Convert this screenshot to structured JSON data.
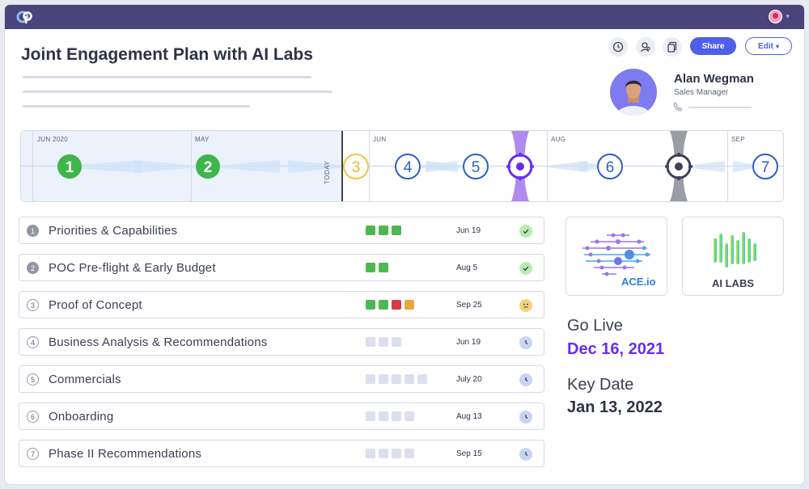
{
  "header": {
    "app_logo_icon": "cp-logo-icon",
    "user_avatar_icon": "user-avatar-icon",
    "brand_color": "#49457b"
  },
  "page": {
    "title": "Joint Engagement Plan with AI Labs"
  },
  "toolbar": {
    "history_icon": "clock-history-icon",
    "people_icon": "user-search-icon",
    "copy_icon": "copy-icon",
    "share_label": "Share",
    "edit_label": "Edit",
    "accent": "#4f5fe8"
  },
  "contact": {
    "name": "Alan Wegman",
    "role": "Sales Manager",
    "phone_icon": "phone-icon"
  },
  "timeline": {
    "months": [
      "JUN 2020",
      "MAY",
      "JUN",
      "AUG",
      "SEP"
    ],
    "today_label": "TODAY",
    "milestones": [
      "1",
      "2",
      "3",
      "4",
      "5",
      "6",
      "7"
    ],
    "targets": [
      {
        "name": "go-live-target",
        "color": "#7b3cf0"
      },
      {
        "name": "key-date-target",
        "color": "#3d4156"
      }
    ]
  },
  "phases": [
    {
      "number": "1",
      "name": "Priorities & Capabilities",
      "bars": [
        "#4db84f",
        "#4db84f",
        "#4db84f"
      ],
      "date": "Jun 19",
      "status": "check",
      "done": true
    },
    {
      "number": "2",
      "name": "POC Pre-flight & Early Budget",
      "bars": [
        "#4db84f",
        "#4db84f"
      ],
      "date": "Aug 5",
      "status": "check",
      "done": true
    },
    {
      "number": "3",
      "name": "Proof of Concept",
      "bars": [
        "#4db84f",
        "#4db84f",
        "#d93a45",
        "#e5a93a"
      ],
      "date": "Sep 25",
      "status": "meh",
      "done": false
    },
    {
      "number": "4",
      "name": "Business Analysis & Recommendations",
      "bars": [
        "#dcdfee",
        "#dcdfee",
        "#dcdfee"
      ],
      "date": "Jun 19",
      "status": "clock",
      "done": false
    },
    {
      "number": "5",
      "name": "Commercials",
      "bars": [
        "#dcdfee",
        "#dcdfee",
        "#dcdfee",
        "#dcdfee",
        "#dcdfee"
      ],
      "date": "July 20",
      "status": "clock",
      "done": false
    },
    {
      "number": "6",
      "name": "Onboarding",
      "bars": [
        "#dcdfee",
        "#dcdfee",
        "#dcdfee",
        "#dcdfee"
      ],
      "date": "Aug 13",
      "status": "clock",
      "done": false
    },
    {
      "number": "7",
      "name": "Phase II Recommendations",
      "bars": [
        "#dcdfee",
        "#dcdfee",
        "#dcdfee",
        "#dcdfee"
      ],
      "date": "Sep 15",
      "status": "clock",
      "done": false
    }
  ],
  "partners": {
    "ace_label": "ACE.io",
    "ai_label": "AI LABS"
  },
  "key_dates": {
    "go_live_label": "Go Live",
    "go_live_value": "Dec 16, 2021",
    "go_live_color": "#6a2cf0",
    "key_date_label": "Key Date",
    "key_date_value": "Jan 13, 2022",
    "key_date_color": "#2e3346"
  }
}
